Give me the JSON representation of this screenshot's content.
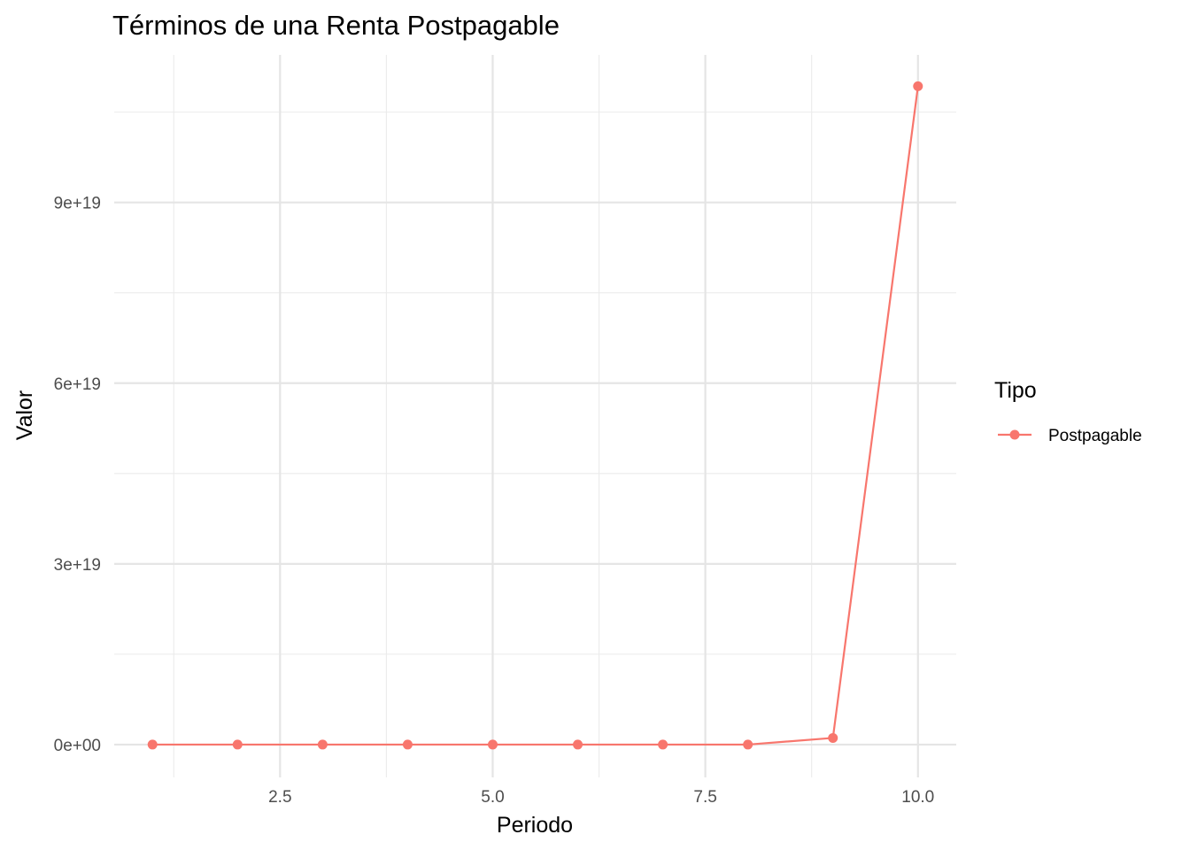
{
  "chart_data": {
    "type": "line",
    "title": "Términos de una Renta Postpagable",
    "xlabel": "Periodo",
    "ylabel": "Valor",
    "xlim": [
      0.55,
      10.45
    ],
    "ylim": [
      -5.45e+18,
      1.145e+20
    ],
    "x_ticks": [
      2.5,
      5.0,
      7.5,
      10.0
    ],
    "x_tick_labels": [
      "2.5",
      "5.0",
      "7.5",
      "10.0"
    ],
    "y_ticks": [
      0,
      3e+19,
      6e+19,
      9e+19
    ],
    "y_tick_labels": [
      "0e+00",
      "3e+19",
      "6e+19",
      "9e+19"
    ],
    "grid": true,
    "legend": {
      "title": "Tipo",
      "position": "right"
    },
    "series": [
      {
        "name": "Postpagable",
        "color": "#F8766D",
        "x": [
          1,
          2,
          3,
          4,
          5,
          6,
          7,
          8,
          9,
          10
        ],
        "y": [
          0,
          0,
          0,
          0,
          0,
          0,
          0,
          0,
          1.1e+18,
          1.093e+20
        ]
      }
    ]
  }
}
